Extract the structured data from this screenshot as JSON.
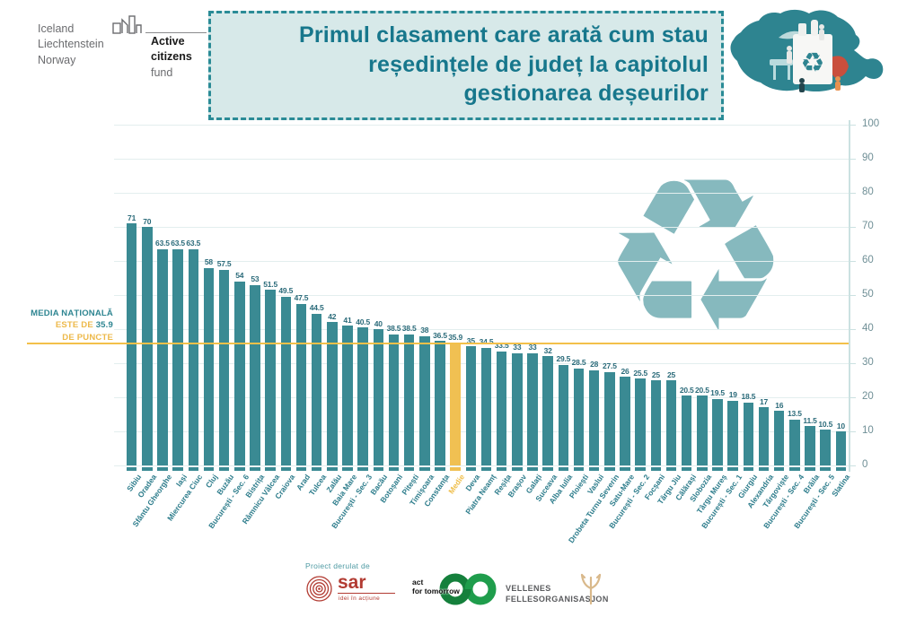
{
  "header": {
    "eea_logo": {
      "countries": [
        "Iceland",
        "Liechtenstein",
        "Norway"
      ],
      "program_bold_1": "Active",
      "program_bold_2": "citizens",
      "program_regular": " fund"
    },
    "title_lines": [
      "Primul clasament care arată cum stau",
      "reședințele de județ la capitolul",
      "gestionarea deșeurilor"
    ]
  },
  "annotation": {
    "line1": "MEDIA NAȚIONALĂ",
    "line2_prefix": "ESTE DE ",
    "line2_value": "35.9",
    "line3": "DE PUNCTE"
  },
  "chart_data": {
    "type": "bar",
    "title": "Primul clasament care arată cum stau reședințele de județ la capitolul gestionarea deșeurilor",
    "categories": [
      "Sibiu",
      "Oradea",
      "Sfântu Gheorghe",
      "Iași",
      "Miercurea Ciuc",
      "Cluj",
      "Buzău",
      "București - Sec. 6",
      "Bistrița",
      "Râmnicu Vâlcea",
      "Craiova",
      "Arad",
      "Tulcea",
      "Zalău",
      "Baia Mare",
      "București - Sec. 3",
      "Bacău",
      "Botoșani",
      "Pitești",
      "Timișoara",
      "Constanța",
      "Medie",
      "Deva",
      "Piatra Neamț",
      "Reșița",
      "Brașov",
      "Galați",
      "Suceava",
      "Alba Iulia",
      "Ploiești",
      "Vaslui",
      "Drobeta Turnu Severin",
      "Satu-Mare",
      "București - Sec. 2",
      "Focșani",
      "Târgu Jiu",
      "Călărași",
      "Slobozia",
      "Târgu Mureș",
      "București - Sec. 1",
      "Giurgiu",
      "Alexandria",
      "Târgoviște",
      "București - Sec. 4",
      "Brăila",
      "București - Sec. 5",
      "Slatina"
    ],
    "values": [
      71,
      70,
      63.5,
      63.5,
      63.5,
      58,
      57.5,
      54,
      53,
      51.5,
      49.5,
      47.5,
      44.5,
      42,
      41,
      40.5,
      40,
      38.5,
      38.5,
      38,
      36.5,
      35.9,
      35,
      34.5,
      33.5,
      33,
      33,
      32,
      29.5,
      28.5,
      28,
      27.5,
      26,
      25.5,
      25,
      25,
      20.5,
      20.5,
      19.5,
      19,
      18.5,
      17,
      16,
      13.5,
      11.5,
      10.5,
      10
    ],
    "highlight_index": 21,
    "highlight_category": "Medie",
    "average_line": 35.9,
    "ylim": [
      0,
      100
    ],
    "yticks": [
      0,
      10,
      20,
      30,
      40,
      50,
      60,
      70,
      80,
      90,
      100
    ],
    "grid": true,
    "legend": "none",
    "xlabel": "",
    "ylabel": ""
  },
  "icons": {
    "recycle": "♻"
  },
  "colors": {
    "bar": "#3a8a93",
    "highlight_bar": "#f0c052",
    "average_line": "#f3c04a",
    "value_label": "#2b6b7a",
    "x_label": "#2e7d8c",
    "x_label_highlight": "#efbe4a",
    "title_text": "#17778c",
    "title_bg": "#d7e9e9",
    "title_border": "#2a8b96",
    "watermark": "#86b9be",
    "annotation_teal": "#2e8591",
    "annotation_yellow": "#edb94a",
    "sar_red": "#b23b32",
    "aft_green": "#1b8040",
    "vellenes_grey": "#5a5b5e",
    "vellenes_tan": "#d9b98b"
  },
  "footer": {
    "prefix": "Proiect derulat de",
    "sar": {
      "name": "sar",
      "tagline": "idei în acțiune"
    },
    "act_for_tomorrow": {
      "line1": "act",
      "line2": "for tomorrow"
    },
    "vellenes": {
      "line1": "VELLENES",
      "line2": "FELLESORGANISASJON"
    }
  }
}
